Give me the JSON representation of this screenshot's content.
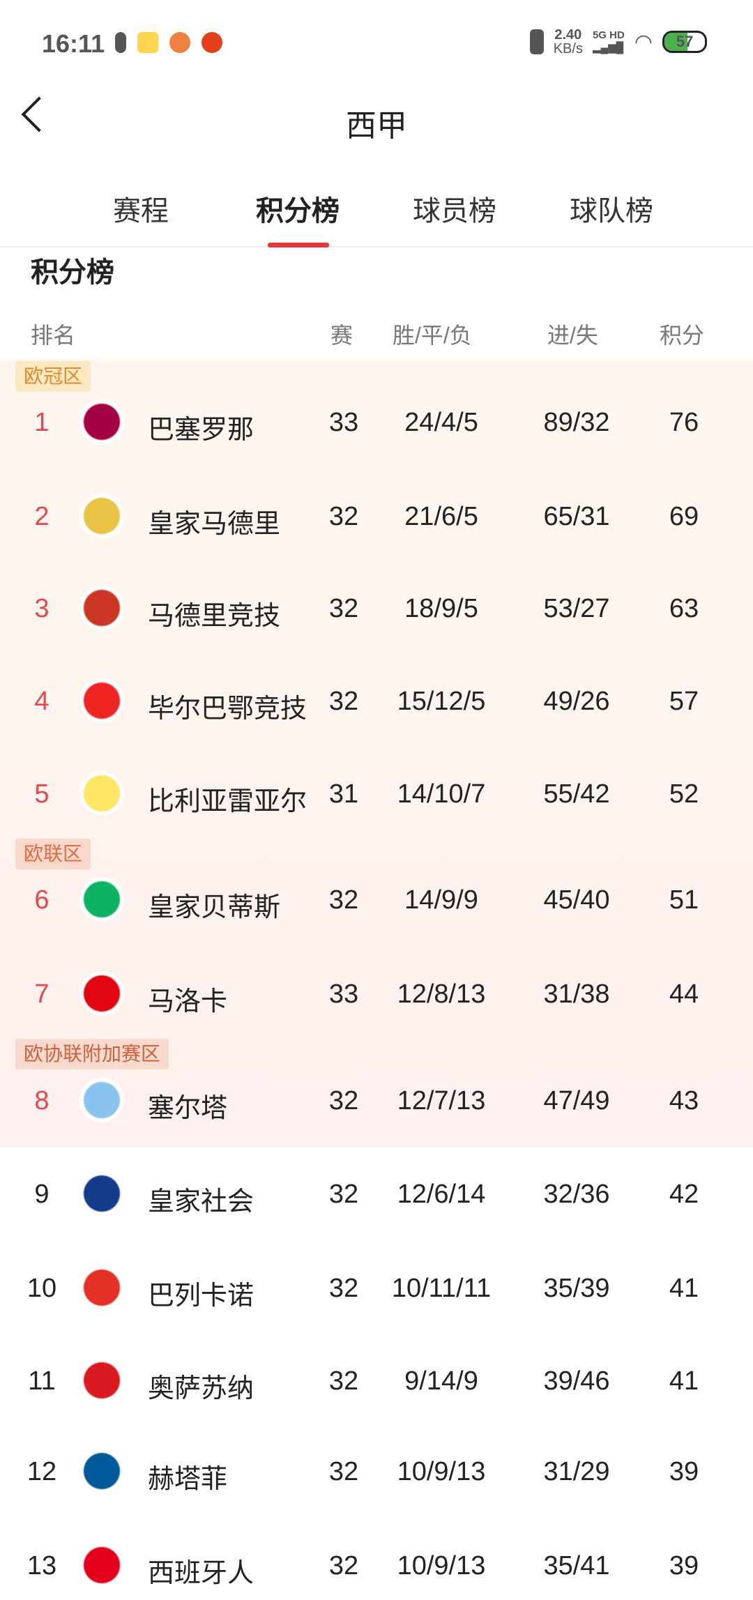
{
  "status": {
    "time": "16:11",
    "speed_value": "2.40",
    "speed_unit": "KB/s",
    "network": "5G HD",
    "battery": "57"
  },
  "header": {
    "title": "西甲"
  },
  "tabs": [
    {
      "label": "赛程"
    },
    {
      "label": "积分榜"
    },
    {
      "label": "球员榜"
    },
    {
      "label": "球队榜"
    }
  ],
  "section_title": "积分榜",
  "columns": {
    "rank": "排名",
    "played": "赛",
    "wdl": "胜/平/负",
    "goals": "进/失",
    "points": "积分"
  },
  "zones": [
    {
      "label": "欧冠区",
      "bg": "#fde8c4",
      "color": "#e08a2a"
    },
    {
      "label": "欧联区",
      "bg": "#fbd8cb",
      "color": "#e06a3c"
    },
    {
      "label": "欧协联附加赛区",
      "bg": "#f7d9cd",
      "color": "#d0603a"
    }
  ],
  "rows": [
    {
      "rank": "1",
      "team": "巴塞罗那",
      "played": "33",
      "wdl": "24/4/5",
      "goals": "89/32",
      "points": "76",
      "logo": "#a50044"
    },
    {
      "rank": "2",
      "team": "皇家马德里",
      "played": "32",
      "wdl": "21/6/5",
      "goals": "65/31",
      "points": "69",
      "logo": "#e8c547"
    },
    {
      "rank": "3",
      "team": "马德里竞技",
      "played": "32",
      "wdl": "18/9/5",
      "goals": "53/27",
      "points": "63",
      "logo": "#cb3524"
    },
    {
      "rank": "4",
      "team": "毕尔巴鄂竞技",
      "played": "32",
      "wdl": "15/12/5",
      "goals": "49/26",
      "points": "57",
      "logo": "#ee2523"
    },
    {
      "rank": "5",
      "team": "比利亚雷亚尔",
      "played": "31",
      "wdl": "14/10/7",
      "goals": "55/42",
      "points": "52",
      "logo": "#ffe667"
    },
    {
      "rank": "6",
      "team": "皇家贝蒂斯",
      "played": "32",
      "wdl": "14/9/9",
      "goals": "45/40",
      "points": "51",
      "logo": "#0bb363"
    },
    {
      "rank": "7",
      "team": "马洛卡",
      "played": "33",
      "wdl": "12/8/13",
      "goals": "31/38",
      "points": "44",
      "logo": "#e20613"
    },
    {
      "rank": "8",
      "team": "塞尔塔",
      "played": "32",
      "wdl": "12/7/13",
      "goals": "47/49",
      "points": "43",
      "logo": "#8ac3ee"
    },
    {
      "rank": "9",
      "team": "皇家社会",
      "played": "32",
      "wdl": "12/6/14",
      "goals": "32/36",
      "points": "42",
      "logo": "#143c8b"
    },
    {
      "rank": "10",
      "team": "巴列卡诺",
      "played": "32",
      "wdl": "10/11/11",
      "goals": "35/39",
      "points": "41",
      "logo": "#e53027"
    },
    {
      "rank": "11",
      "team": "奥萨苏纳",
      "played": "32",
      "wdl": "9/14/9",
      "goals": "39/46",
      "points": "41",
      "logo": "#d91a21"
    },
    {
      "rank": "12",
      "team": "赫塔菲",
      "played": "32",
      "wdl": "10/9/13",
      "goals": "31/29",
      "points": "39",
      "logo": "#005999"
    },
    {
      "rank": "13",
      "team": "西班牙人",
      "played": "32",
      "wdl": "10/9/13",
      "goals": "35/41",
      "points": "39",
      "logo": "#e2001a"
    }
  ]
}
